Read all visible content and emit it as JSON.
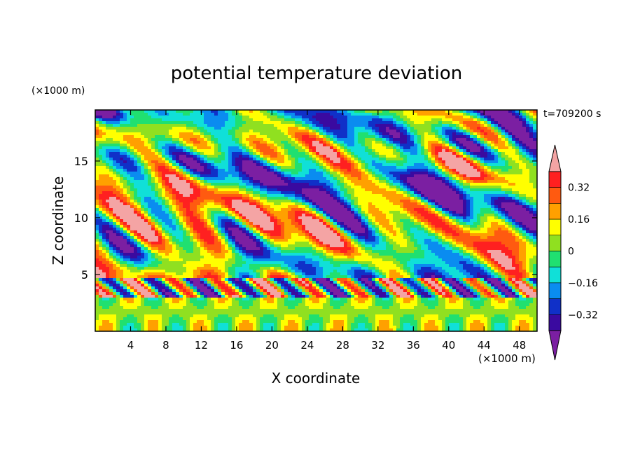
{
  "chart_data": {
    "type": "heatmap",
    "title": "potential temperature deviation",
    "xlabel": "X coordinate",
    "ylabel": "Z coordinate",
    "x_unit": "(×1000 m)",
    "y_unit": "(×1000 m)",
    "time_label": "t=709200 s",
    "xlim": [
      0,
      50
    ],
    "ylim": [
      0,
      19.5
    ],
    "x_ticks": [
      "4",
      "8",
      "12",
      "16",
      "20",
      "24",
      "28",
      "32",
      "36",
      "40",
      "44",
      "48"
    ],
    "y_ticks": [
      "5",
      "10",
      "15"
    ],
    "colorbar": {
      "levels": [
        -0.4,
        -0.32,
        -0.24,
        -0.16,
        -0.08,
        0,
        0.08,
        0.16,
        0.24,
        0.32,
        0.4
      ],
      "tick_labels": [
        "0.32",
        "0.16",
        "0",
        "−0.16",
        "−0.32"
      ],
      "tick_values": [
        0.32,
        0.16,
        0,
        -0.16,
        -0.32
      ],
      "colors": [
        "#7b1fa2",
        "#3a0aa0",
        "#1030c8",
        "#0a8cf0",
        "#10e0d8",
        "#20e070",
        "#90e020",
        "#ffff00",
        "#ffa000",
        "#ff5a10",
        "#ff2020",
        "#f4a4a4"
      ],
      "extend": "both"
    }
  }
}
